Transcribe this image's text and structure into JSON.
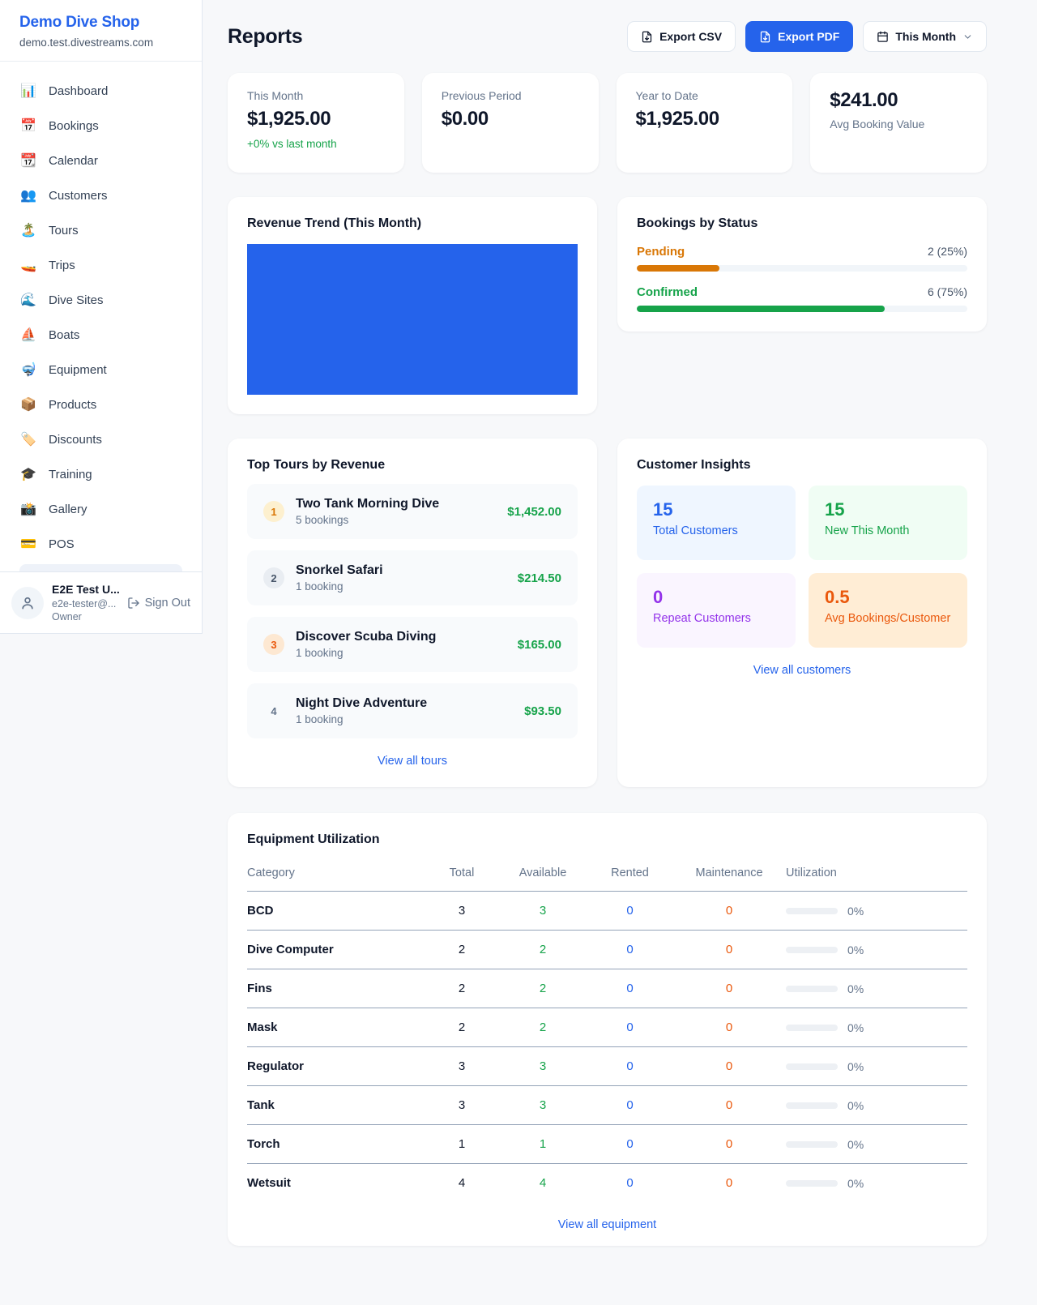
{
  "sidebar": {
    "shop_name": "Demo Dive Shop",
    "shop_domain": "demo.test.divestreams.com",
    "nav": [
      {
        "icon": "📊",
        "label": "Dashboard"
      },
      {
        "icon": "📅",
        "label": "Bookings"
      },
      {
        "icon": "📆",
        "label": "Calendar"
      },
      {
        "icon": "👥",
        "label": "Customers"
      },
      {
        "icon": "🏝️",
        "label": "Tours"
      },
      {
        "icon": "🚤",
        "label": "Trips"
      },
      {
        "icon": "🌊",
        "label": "Dive Sites"
      },
      {
        "icon": "⛵",
        "label": "Boats"
      },
      {
        "icon": "🤿",
        "label": "Equipment"
      },
      {
        "icon": "📦",
        "label": "Products"
      },
      {
        "icon": "🏷️",
        "label": "Discounts"
      },
      {
        "icon": "🎓",
        "label": "Training"
      },
      {
        "icon": "📸",
        "label": "Gallery"
      },
      {
        "icon": "💳",
        "label": "POS"
      }
    ],
    "user": {
      "name": "E2E Test U...",
      "email": "e2e-tester@...",
      "role": "Owner",
      "sign_out_label": "Sign Out"
    }
  },
  "header": {
    "title": "Reports",
    "export_csv_label": "Export CSV",
    "export_pdf_label": "Export PDF",
    "period_label": "This Month"
  },
  "stats": {
    "this_month": {
      "label": "This Month",
      "value": "$1,925.00",
      "delta": "+0% vs last month"
    },
    "previous_period": {
      "label": "Previous Period",
      "value": "$0.00"
    },
    "year_to_date": {
      "label": "Year to Date",
      "value": "$1,925.00"
    },
    "avg_booking": {
      "label": "Avg Booking Value",
      "value": "$241.00"
    }
  },
  "revenue_trend": {
    "title": "Revenue Trend (This Month)",
    "fill_color": "#2563eb"
  },
  "bookings_by_status": {
    "title": "Bookings by Status",
    "items": [
      {
        "label": "Pending",
        "count_text": "2 (25%)",
        "percent": 25,
        "color": "#d97706"
      },
      {
        "label": "Confirmed",
        "count_text": "6 (75%)",
        "percent": 75,
        "color": "#16a34a"
      }
    ]
  },
  "top_tours": {
    "title": "Top Tours by Revenue",
    "rows": [
      {
        "rank": "1",
        "name": "Two Tank Morning Dive",
        "bookings": "5 bookings",
        "revenue": "$1,452.00",
        "badge_bg": "#fdf0cf",
        "badge_color": "#d97706"
      },
      {
        "rank": "2",
        "name": "Snorkel Safari",
        "bookings": "1 booking",
        "revenue": "$214.50",
        "badge_bg": "#e9edf2",
        "badge_color": "#475569"
      },
      {
        "rank": "3",
        "name": "Discover Scuba Diving",
        "bookings": "1 booking",
        "revenue": "$165.00",
        "badge_bg": "#fde8d2",
        "badge_color": "#ea580c"
      },
      {
        "rank": "4",
        "name": "Night Dive Adventure",
        "bookings": "1 booking",
        "revenue": "$93.50",
        "badge_bg": "transparent",
        "badge_color": "#64748b"
      }
    ],
    "view_all_label": "View all tours"
  },
  "customer_insights": {
    "title": "Customer Insights",
    "tiles": [
      {
        "value": "15",
        "label": "Total Customers",
        "bg": "#eff6ff",
        "color": "#2563eb"
      },
      {
        "value": "15",
        "label": "New This Month",
        "bg": "#f0fdf4",
        "color": "#16a34a"
      },
      {
        "value": "0",
        "label": "Repeat Customers",
        "bg": "#faf5ff",
        "color": "#9333ea"
      },
      {
        "value": "0.5",
        "label": "Avg Bookings/Customer",
        "bg": "#ffedd5",
        "color": "#ea580c"
      }
    ],
    "view_all_label": "View all customers"
  },
  "equipment": {
    "title": "Equipment Utilization",
    "columns": [
      "Category",
      "Total",
      "Available",
      "Rented",
      "Maintenance",
      "Utilization"
    ],
    "value_colors": {
      "total": "#0f172a",
      "available": "#16a34a",
      "rented": "#2563eb",
      "maintenance": "#ea580c"
    },
    "rows": [
      {
        "category": "BCD",
        "total": "3",
        "available": "3",
        "rented": "0",
        "maintenance": "0",
        "utilization": "0%"
      },
      {
        "category": "Dive Computer",
        "total": "2",
        "available": "2",
        "rented": "0",
        "maintenance": "0",
        "utilization": "0%"
      },
      {
        "category": "Fins",
        "total": "2",
        "available": "2",
        "rented": "0",
        "maintenance": "0",
        "utilization": "0%"
      },
      {
        "category": "Mask",
        "total": "2",
        "available": "2",
        "rented": "0",
        "maintenance": "0",
        "utilization": "0%"
      },
      {
        "category": "Regulator",
        "total": "3",
        "available": "3",
        "rented": "0",
        "maintenance": "0",
        "utilization": "0%"
      },
      {
        "category": "Tank",
        "total": "3",
        "available": "3",
        "rented": "0",
        "maintenance": "0",
        "utilization": "0%"
      },
      {
        "category": "Torch",
        "total": "1",
        "available": "1",
        "rented": "0",
        "maintenance": "0",
        "utilization": "0%"
      },
      {
        "category": "Wetsuit",
        "total": "4",
        "available": "4",
        "rented": "0",
        "maintenance": "0",
        "utilization": "0%"
      }
    ],
    "view_all_label": "View all equipment"
  }
}
